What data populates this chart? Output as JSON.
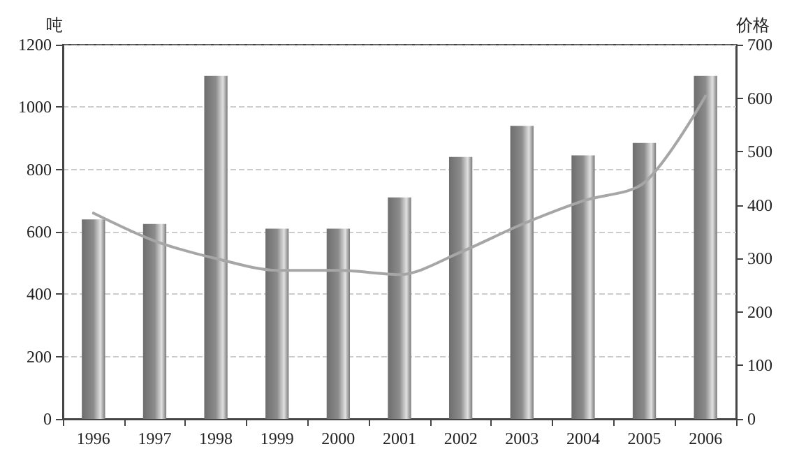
{
  "chart_data": {
    "type": "bar",
    "ylabel": "吨",
    "y2label": "价格",
    "categories": [
      "1996",
      "1997",
      "1998",
      "1999",
      "2000",
      "2001",
      "2002",
      "2003",
      "2004",
      "2005",
      "2006"
    ],
    "series": [
      {
        "color": "#8c8c8c",
        "values": [
          640,
          625,
          1100,
          610,
          610,
          710,
          840,
          940,
          845,
          885,
          1100
        ]
      },
      {
        "type": "line",
        "axis": "y2",
        "color": "#a6a6a6",
        "marker": "none",
        "line_style": "solid",
        "values": [
          385,
          333,
          300,
          278,
          278,
          270,
          312,
          364,
          408,
          442,
          604
        ]
      }
    ],
    "ylim": [
      0,
      1200
    ],
    "yticks": [
      0,
      200,
      400,
      600,
      800,
      1000,
      1200
    ],
    "y2lim": [
      0,
      700
    ],
    "y2ticks": [
      0,
      100,
      200,
      300,
      400,
      500,
      600,
      700
    ],
    "grid": "y"
  }
}
